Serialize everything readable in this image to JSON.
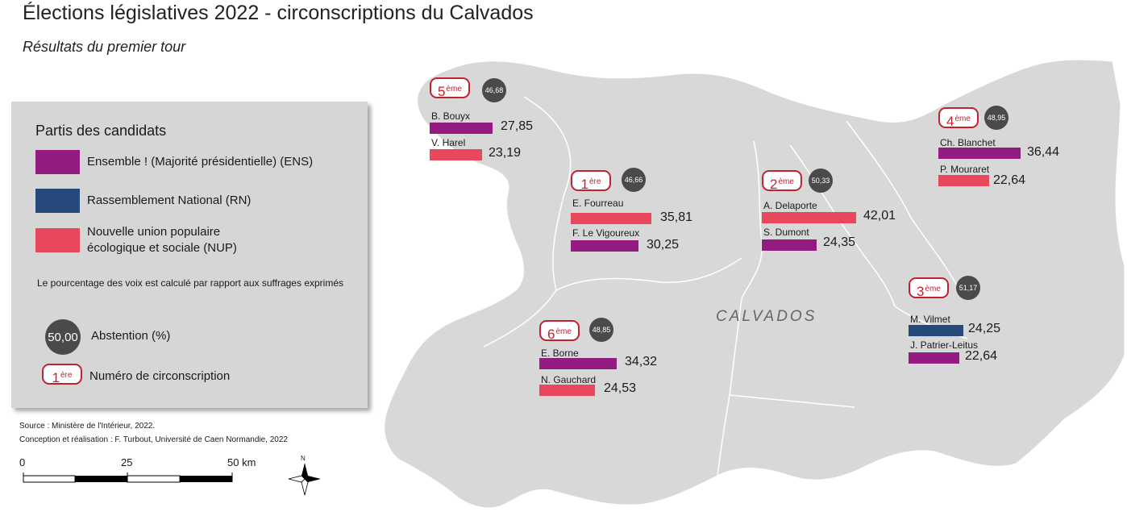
{
  "title": "Élections législatives 2022 - circonscriptions du Calvados",
  "subtitle": "Résultats du premier tour",
  "department_label": "CALVADOS",
  "legend": {
    "title": "Partis des candidats",
    "parties": [
      {
        "label": "Ensemble ! (Majorité présidentielle) (ENS)",
        "color": "#941b7f"
      },
      {
        "label": "Rassemblement National (RN)",
        "color": "#24497a"
      },
      {
        "label_line1": "Nouvelle union populaire",
        "label_line2": "écologique et sociale (NUP)",
        "color": "#e8485c"
      }
    ],
    "note": "Le pourcentage des voix est calculé par rapport aux suffrages exprimés",
    "abstention_example": "50,00",
    "abstention_label": "Abstention (%)",
    "circ_example_num": "1",
    "circ_example_sup": "ère",
    "circ_label": "Numéro de circonscription"
  },
  "circonscriptions": [
    {
      "num": "5",
      "sup": "ème",
      "abstention": "46,68",
      "candidates": [
        {
          "name": "B. Bouyx",
          "value": "27,85",
          "party": "ENS"
        },
        {
          "name": "V. Harel",
          "value": "23,19",
          "party": "NUP"
        }
      ]
    },
    {
      "num": "1",
      "sup": "ère",
      "abstention": "46,66",
      "candidates": [
        {
          "name": "E. Fourreau",
          "value": "35,81",
          "party": "NUP"
        },
        {
          "name": "F. Le Vigoureux",
          "value": "30,25",
          "party": "ENS"
        }
      ]
    },
    {
      "num": "2",
      "sup": "ème",
      "abstention": "50,33",
      "candidates": [
        {
          "name": "A. Delaporte",
          "value": "42,01",
          "party": "NUP"
        },
        {
          "name": "S. Dumont",
          "value": "24,35",
          "party": "ENS"
        }
      ]
    },
    {
      "num": "4",
      "sup": "ème",
      "abstention": "48,95",
      "candidates": [
        {
          "name": "Ch. Blanchet",
          "value": "36,44",
          "party": "ENS"
        },
        {
          "name": "P. Mouraret",
          "value": "22,64",
          "party": "NUP"
        }
      ]
    },
    {
      "num": "3",
      "sup": "ème",
      "abstention": "51,17",
      "candidates": [
        {
          "name": "M. Vilmet",
          "value": "24,25",
          "party": "RN"
        },
        {
          "name": "J. Patrier-Leitus",
          "value": "22,64",
          "party": "ENS"
        }
      ]
    },
    {
      "num": "6",
      "sup": "ème",
      "abstention": "48,85",
      "candidates": [
        {
          "name": "E. Borne",
          "value": "34,32",
          "party": "ENS"
        },
        {
          "name": "N. Gauchard",
          "value": "24,53",
          "party": "NUP"
        }
      ]
    }
  ],
  "party_colors": {
    "ENS": "#941b7f",
    "RN": "#24497a",
    "NUP": "#e8485c"
  },
  "source_line1": "Source : Ministère de l'Intérieur, 2022.",
  "source_line2": "Conception et réalisation : F. Turbout, Université de Caen Normandie, 2022",
  "scale": {
    "zero": "0",
    "mid": "25",
    "end": "50 km"
  },
  "north": "N"
}
